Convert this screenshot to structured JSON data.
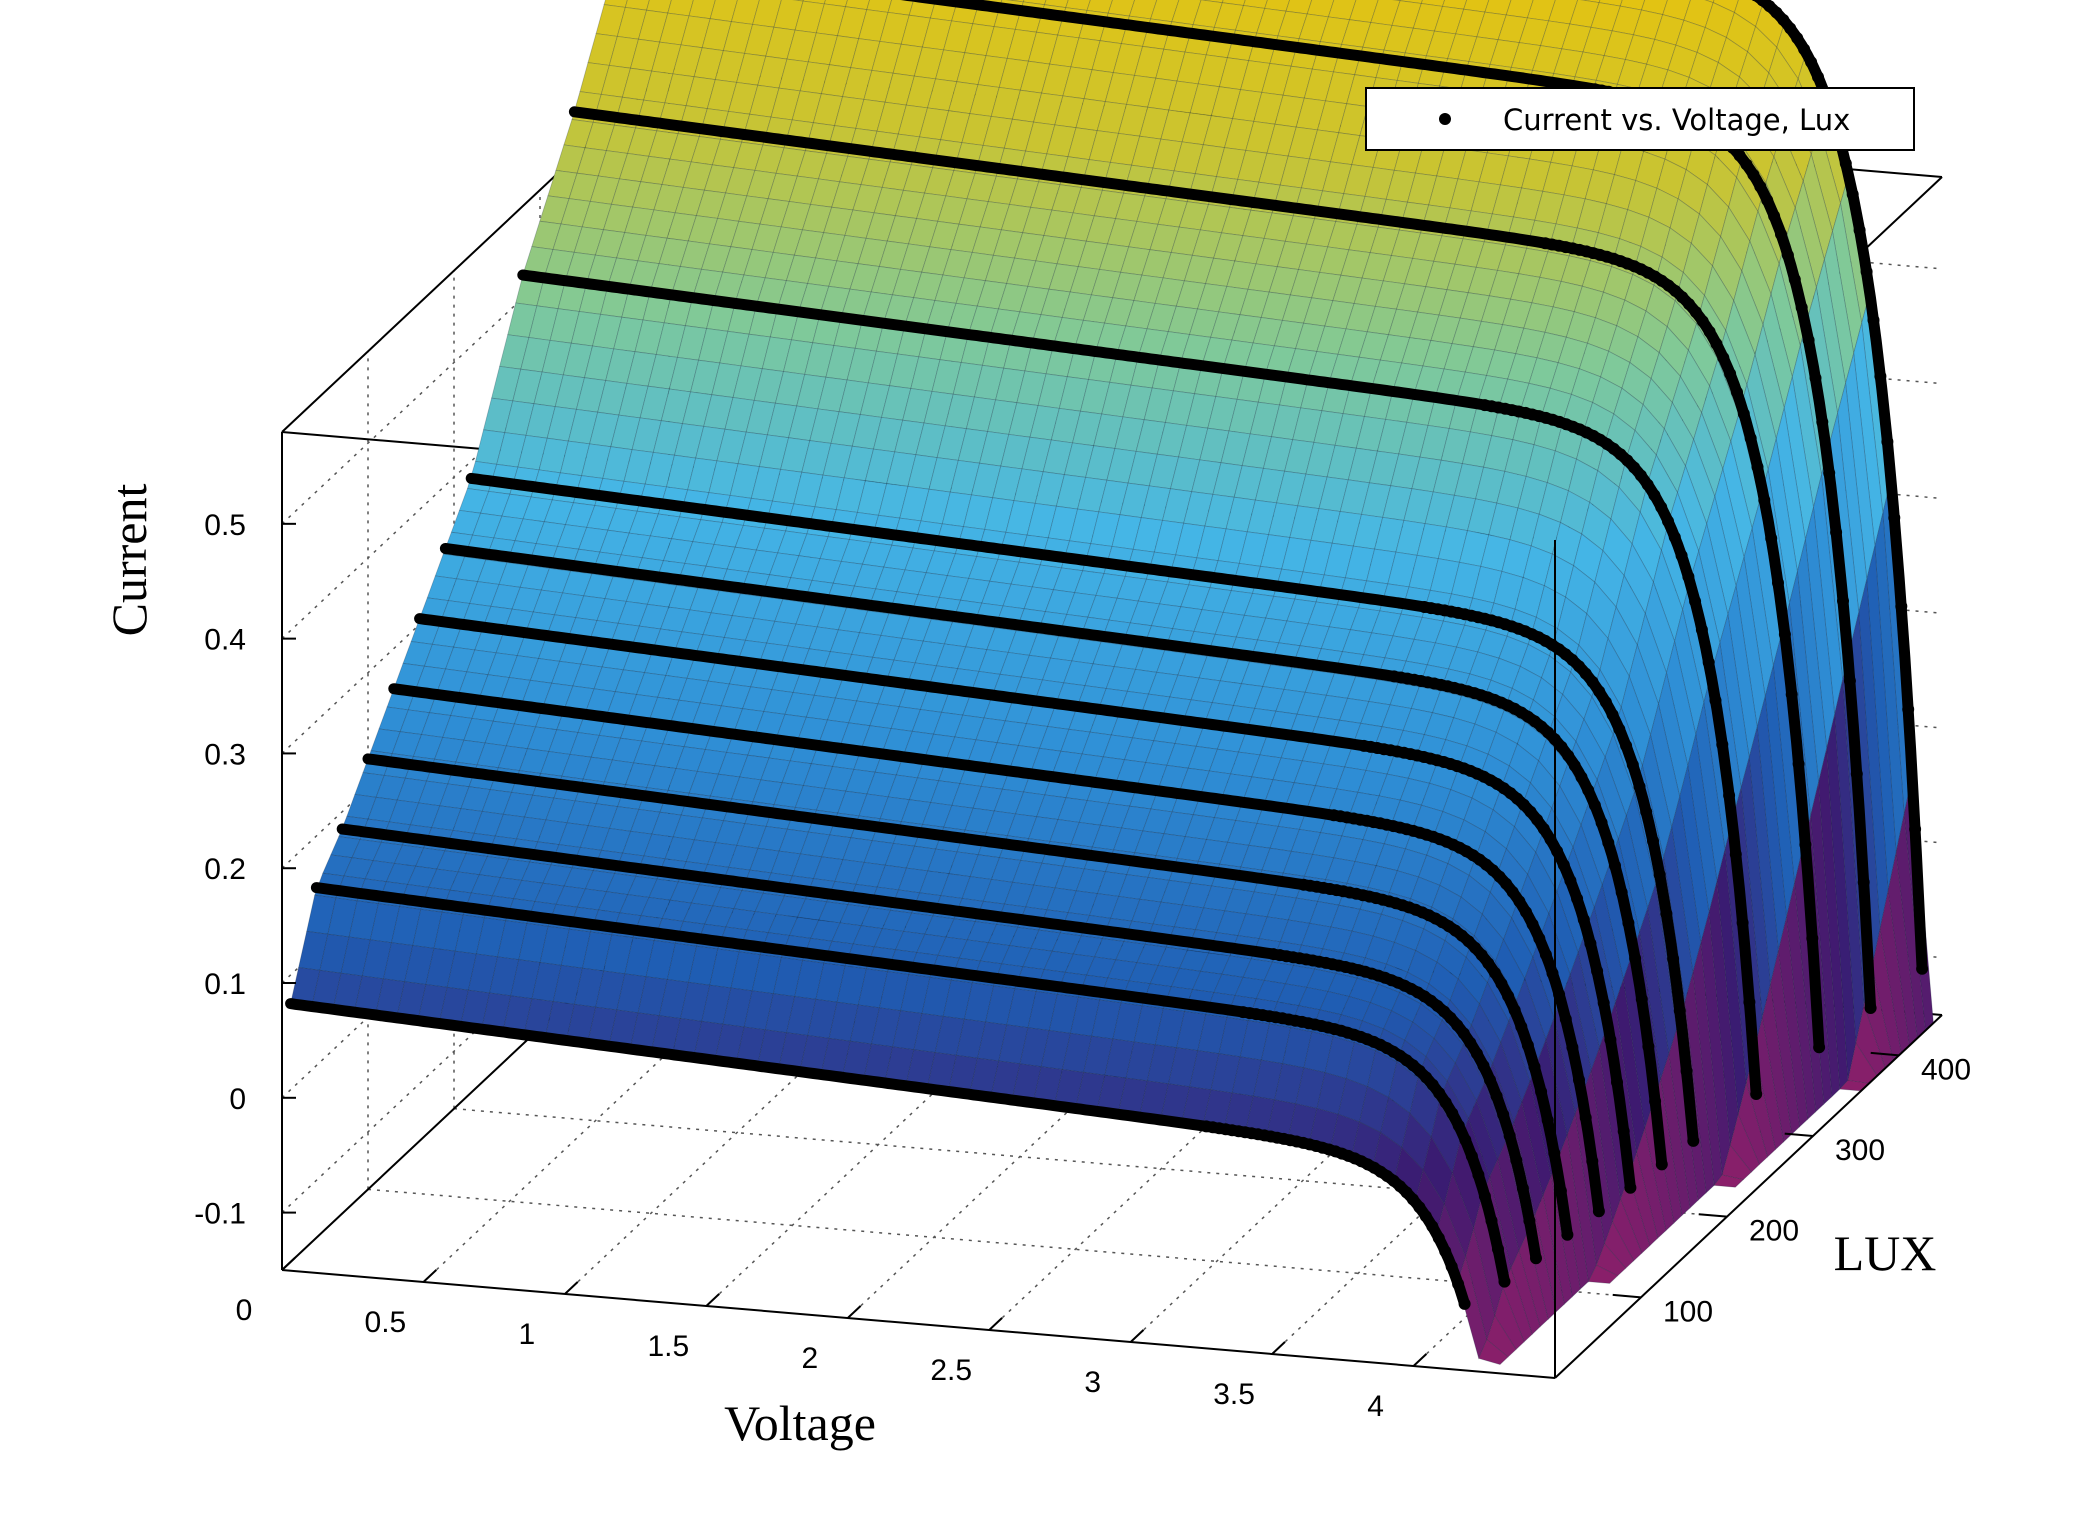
{
  "chart_data": {
    "type": "surface3d",
    "xlabel": "Voltage",
    "ylabel": "LUX",
    "zlabel": "Current",
    "xlim": [
      0,
      4.5
    ],
    "ylim": [
      0,
      450
    ],
    "zlim": [
      -0.15,
      0.58
    ],
    "x_ticks": [
      "0",
      "0.5",
      "1",
      "1.5",
      "2",
      "2.5",
      "3",
      "3.5",
      "4"
    ],
    "y_ticks": [
      "100",
      "200",
      "300",
      "400"
    ],
    "z_ticks": [
      "-0.1",
      "0",
      "0.1",
      "0.2",
      "0.3",
      "0.4",
      "0.5"
    ],
    "grid": true,
    "legend": {
      "position": "top-right",
      "entries": [
        "Current vs. Voltage, Lux"
      ]
    },
    "surface": {
      "colormap": [
        "#3b1a70",
        "#8a1f6a",
        "#1f5db3",
        "#2f8fd6",
        "#45b6e6",
        "#7fc99a",
        "#c9c432",
        "#f2c300"
      ],
      "current_vs_lux": [
        [
          0,
          0.0
        ],
        [
          450,
          0.58
        ]
      ]
    },
    "series": [
      {
        "name": "Current vs. Voltage, Lux",
        "lux": [
          10,
          40,
          70,
          100,
          130,
          160,
          190,
          220,
          280,
          340,
          390,
          440
        ],
        "short_circuit_current": [
          0.075,
          0.155,
          0.185,
          0.225,
          0.265,
          0.305,
          0.345,
          0.385,
          0.52,
          0.62,
          0.72,
          0.8
        ],
        "open_circuit_voltage": [
          4.15,
          4.2,
          4.22,
          4.24,
          4.26,
          4.28,
          4.3,
          4.32,
          4.36,
          4.4,
          4.43,
          4.46
        ]
      }
    ]
  }
}
